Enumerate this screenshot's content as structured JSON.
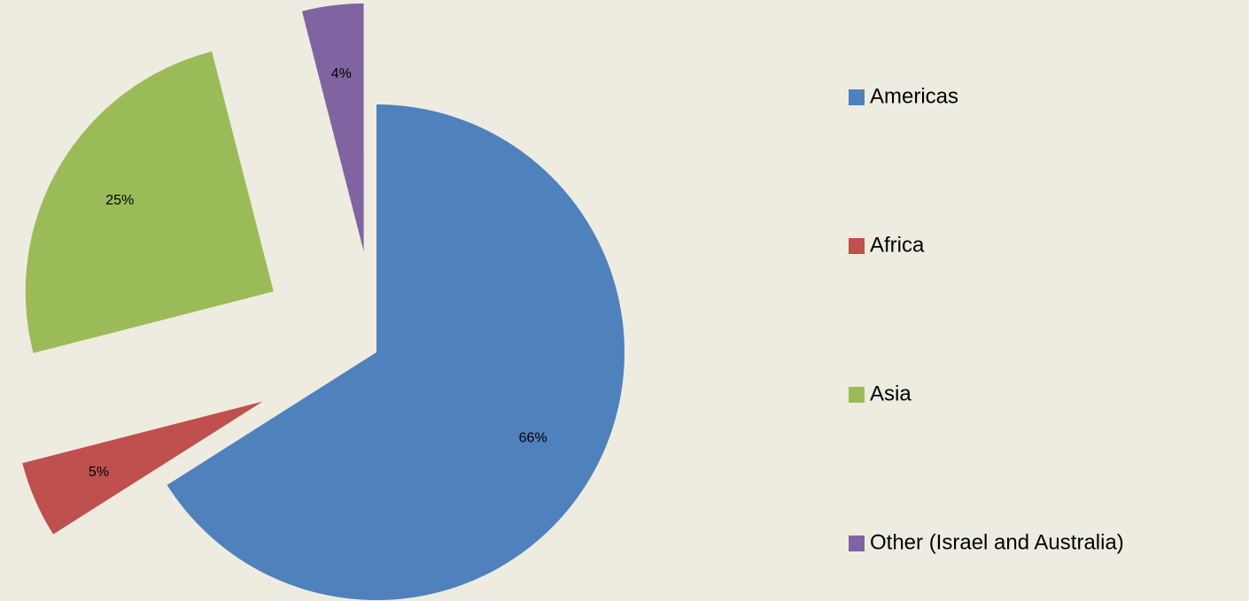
{
  "chart_data": {
    "type": "pie",
    "categories": [
      "Americas",
      "Africa",
      "Asia",
      "Other (Israel and Australia)"
    ],
    "values": [
      66,
      5,
      25,
      4
    ],
    "value_labels": [
      "66%",
      "5%",
      "25%",
      "4%"
    ],
    "colors": [
      "#4f81bd",
      "#c0504d",
      "#9bbb59",
      "#8064a2"
    ],
    "legend": "right"
  }
}
